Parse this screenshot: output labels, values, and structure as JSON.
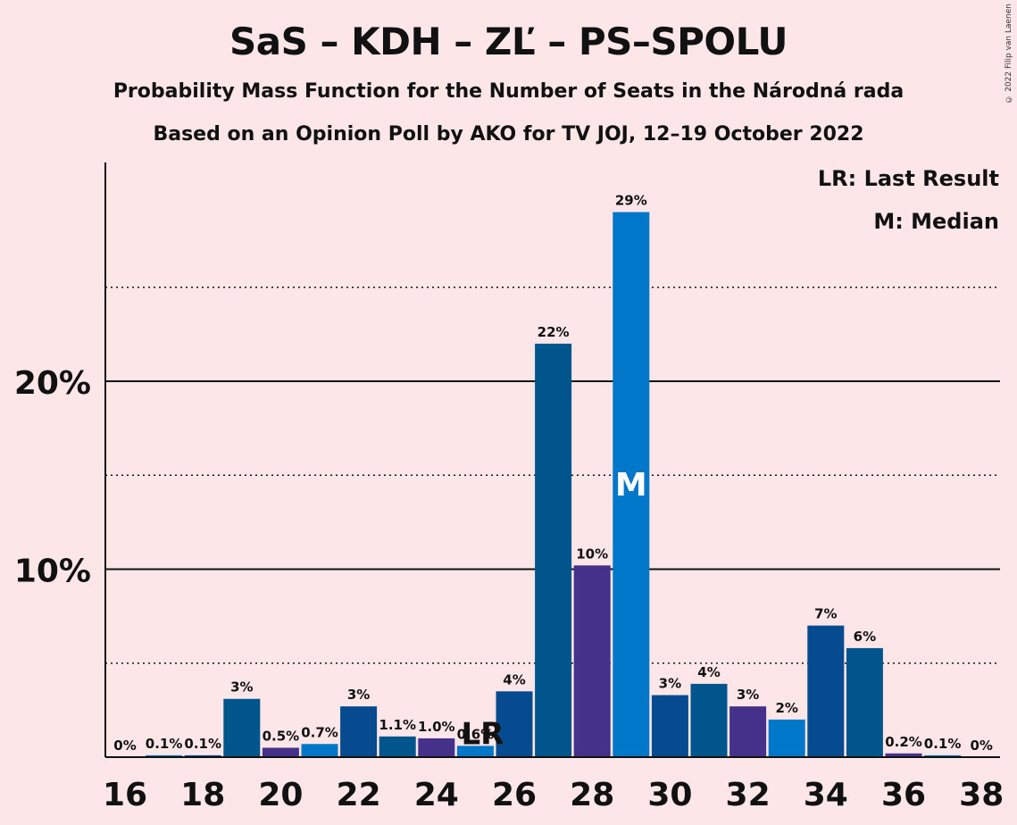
{
  "title": "SaS – KDH – ZĽ – PS–SPOLU",
  "subtitle": "Probability Mass Function for the Number of Seats in the Národná rada",
  "subtitle2": "Based on an Opinion Poll by AKO for TV JOJ, 12–19 October 2022",
  "copyright": "© 2022 Filip van Laenen",
  "legend": {
    "last_result": "LR: Last Result",
    "median": "M: Median"
  },
  "colors": {
    "background": "#fde6e8",
    "bar_palette": [
      "#45318a",
      "#0077c8",
      "#064a8f",
      "#00568c"
    ]
  },
  "chart_data": {
    "type": "bar",
    "categories": [
      16,
      17,
      18,
      19,
      20,
      21,
      22,
      23,
      24,
      25,
      26,
      27,
      28,
      29,
      30,
      31,
      32,
      33,
      34,
      35,
      36,
      37,
      38
    ],
    "values": [
      0,
      0.1,
      0.1,
      3.1,
      0.5,
      0.7,
      2.7,
      1.1,
      1.0,
      0.6,
      3.5,
      22.0,
      10.2,
      29.0,
      3.3,
      3.9,
      2.7,
      2.0,
      7.0,
      5.8,
      0.2,
      0.1,
      0
    ],
    "data_labels": [
      "0%",
      "0.1%",
      "0.1%",
      "3%",
      "0.5%",
      "0.7%",
      "3%",
      "1.1%",
      "1.0%",
      "0.6%",
      "4%",
      "22%",
      "10%",
      "29%",
      "3%",
      "4%",
      "3%",
      "2%",
      "7%",
      "6%",
      "0.2%",
      "0.1%",
      "0%"
    ],
    "x_tick_labels": [
      "16",
      "18",
      "20",
      "22",
      "24",
      "26",
      "28",
      "30",
      "32",
      "34",
      "36",
      "38"
    ],
    "y_tick_labels": [
      "10%",
      "20%"
    ],
    "y_ticks": [
      10,
      20
    ],
    "y_minor_ticks": [
      5,
      15,
      25
    ],
    "ylim": [
      0,
      31.5
    ],
    "last_result": {
      "seat": 25,
      "label": "LR"
    },
    "median": {
      "seat": 29,
      "label": "M"
    },
    "grid": true
  }
}
